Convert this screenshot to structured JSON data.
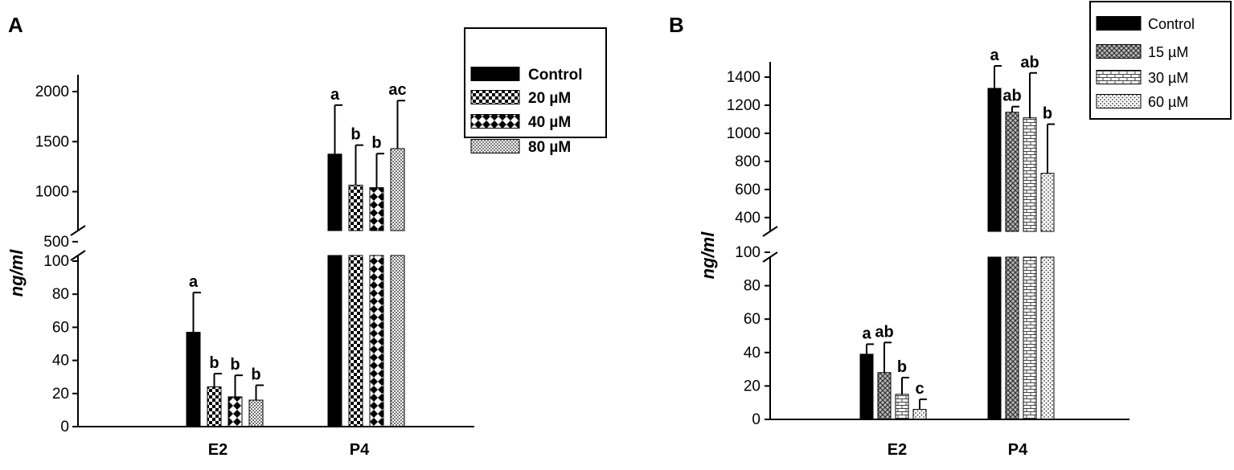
{
  "chart_data": [
    {
      "panel": "A",
      "type": "bar",
      "ylabel": "ng/ml",
      "categories": [
        "E2",
        "P4"
      ],
      "axis_break": {
        "lower_range": [
          0,
          100
        ],
        "upper_range": [
          200,
          2000
        ]
      },
      "lower_ticks": [
        "0",
        "20",
        "40",
        "60",
        "80",
        "100"
      ],
      "upper_ticks": [
        "500",
        "1000",
        "1500",
        "2000"
      ],
      "legend_position": "top-right",
      "series": [
        {
          "name": "Control",
          "pattern": "solid",
          "values": [
            57,
            1375
          ],
          "errors": [
            24,
            490
          ],
          "labels": [
            "a",
            "a"
          ]
        },
        {
          "name": "20 µM",
          "pattern": "checker",
          "values": [
            24,
            1065
          ],
          "errors": [
            8,
            400
          ],
          "labels": [
            "b",
            "b"
          ]
        },
        {
          "name": "40 µM",
          "pattern": "diamond",
          "values": [
            18,
            1040
          ],
          "errors": [
            13,
            340
          ],
          "labels": [
            "b",
            "b"
          ]
        },
        {
          "name": "80 µM",
          "pattern": "fine",
          "values": [
            16,
            1430
          ],
          "errors": [
            9,
            480
          ],
          "labels": [
            "b",
            "ac"
          ]
        }
      ]
    },
    {
      "panel": "B",
      "type": "bar",
      "ylabel": "ng/ml",
      "categories": [
        "E2",
        "P4"
      ],
      "axis_break": {
        "lower_range": [
          0,
          100
        ],
        "upper_range": [
          290,
          1400
        ]
      },
      "lower_ticks": [
        "0",
        "20",
        "40",
        "60",
        "80",
        "100"
      ],
      "upper_ticks": [
        "400",
        "600",
        "800",
        "1000",
        "1200",
        "1400"
      ],
      "legend_position": "top-right",
      "series": [
        {
          "name": "Control",
          "pattern": "solid",
          "values": [
            39,
            1320
          ],
          "errors": [
            6,
            160
          ],
          "labels": [
            "a",
            "a"
          ]
        },
        {
          "name": "15 µM",
          "pattern": "cross",
          "values": [
            28,
            1150
          ],
          "errors": [
            18,
            40
          ],
          "labels": [
            "ab",
            "ab"
          ]
        },
        {
          "name": "30 µM",
          "pattern": "brick",
          "values": [
            15,
            1110
          ],
          "errors": [
            10,
            320
          ],
          "labels": [
            "b",
            "ab"
          ]
        },
        {
          "name": "60 µM",
          "pattern": "dots",
          "values": [
            6,
            715
          ],
          "errors": [
            6,
            350
          ],
          "labels": [
            "c",
            "b"
          ]
        }
      ]
    }
  ]
}
